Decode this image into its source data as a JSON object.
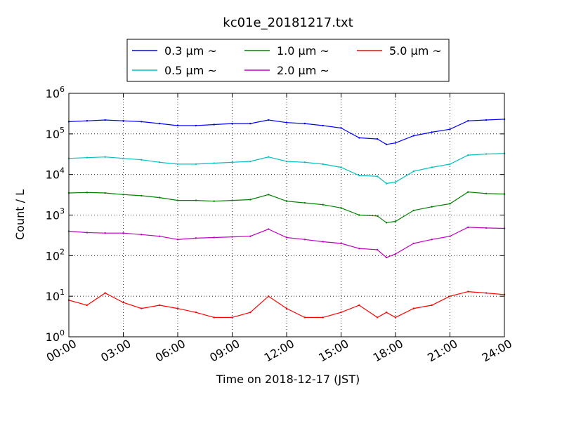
{
  "chart_data": {
    "type": "line",
    "title": "kc01e_20181217.txt",
    "xlabel": "Time on 2018-12-17 (JST)",
    "ylabel": "Count / L",
    "yscale": "log",
    "ylim": [
      1,
      1000000
    ],
    "x_ticks": [
      "00:00",
      "03:00",
      "06:00",
      "09:00",
      "12:00",
      "15:00",
      "18:00",
      "21:00",
      "24:00"
    ],
    "y_ticks": [
      {
        "base": "10",
        "exp": "0",
        "value": 1
      },
      {
        "base": "10",
        "exp": "1",
        "value": 10
      },
      {
        "base": "10",
        "exp": "2",
        "value": 100
      },
      {
        "base": "10",
        "exp": "3",
        "value": 1000
      },
      {
        "base": "10",
        "exp": "4",
        "value": 10000
      },
      {
        "base": "10",
        "exp": "5",
        "value": 100000
      },
      {
        "base": "10",
        "exp": "6",
        "value": 1000000
      }
    ],
    "grid": true,
    "legend_position": "top-center",
    "x_hours": [
      0,
      1,
      2,
      3,
      4,
      5,
      6,
      7,
      8,
      9,
      10,
      11,
      12,
      13,
      14,
      15,
      16,
      17,
      17.5,
      18,
      19,
      20,
      21,
      22,
      23,
      24
    ],
    "series": [
      {
        "name": "0.3 µm ~",
        "color": "#0000ff",
        "values": [
          200000,
          210000,
          220000,
          210000,
          200000,
          180000,
          160000,
          160000,
          170000,
          180000,
          180000,
          220000,
          190000,
          180000,
          160000,
          140000,
          80000,
          75000,
          55000,
          60000,
          90000,
          110000,
          130000,
          210000,
          220000,
          230000
        ]
      },
      {
        "name": "0.5 µm ~",
        "color": "#00bfbf",
        "values": [
          25000,
          26000,
          27000,
          25000,
          23000,
          20000,
          18000,
          18000,
          19000,
          20000,
          21000,
          27000,
          21000,
          20000,
          18000,
          15000,
          9500,
          9000,
          6000,
          6500,
          12000,
          15000,
          18000,
          30000,
          32000,
          33000
        ]
      },
      {
        "name": "1.0 µm ~",
        "color": "#008000",
        "values": [
          3500,
          3600,
          3500,
          3200,
          3000,
          2700,
          2300,
          2300,
          2200,
          2300,
          2400,
          3200,
          2200,
          2000,
          1800,
          1500,
          1000,
          950,
          650,
          700,
          1300,
          1600,
          1900,
          3700,
          3400,
          3300
        ]
      },
      {
        "name": "2.0 µm ~",
        "color": "#bf00bf",
        "values": [
          400,
          370,
          360,
          360,
          330,
          300,
          250,
          270,
          280,
          290,
          300,
          450,
          280,
          250,
          220,
          200,
          150,
          140,
          90,
          110,
          200,
          250,
          300,
          500,
          480,
          470
        ]
      },
      {
        "name": "5.0 µm ~",
        "color": "#ff0000",
        "values": [
          8,
          6,
          12,
          7,
          5,
          6,
          5,
          4,
          3,
          3,
          4,
          10,
          5,
          3,
          3,
          4,
          6,
          3,
          4,
          3,
          5,
          6,
          10,
          13,
          12,
          11
        ]
      }
    ]
  }
}
